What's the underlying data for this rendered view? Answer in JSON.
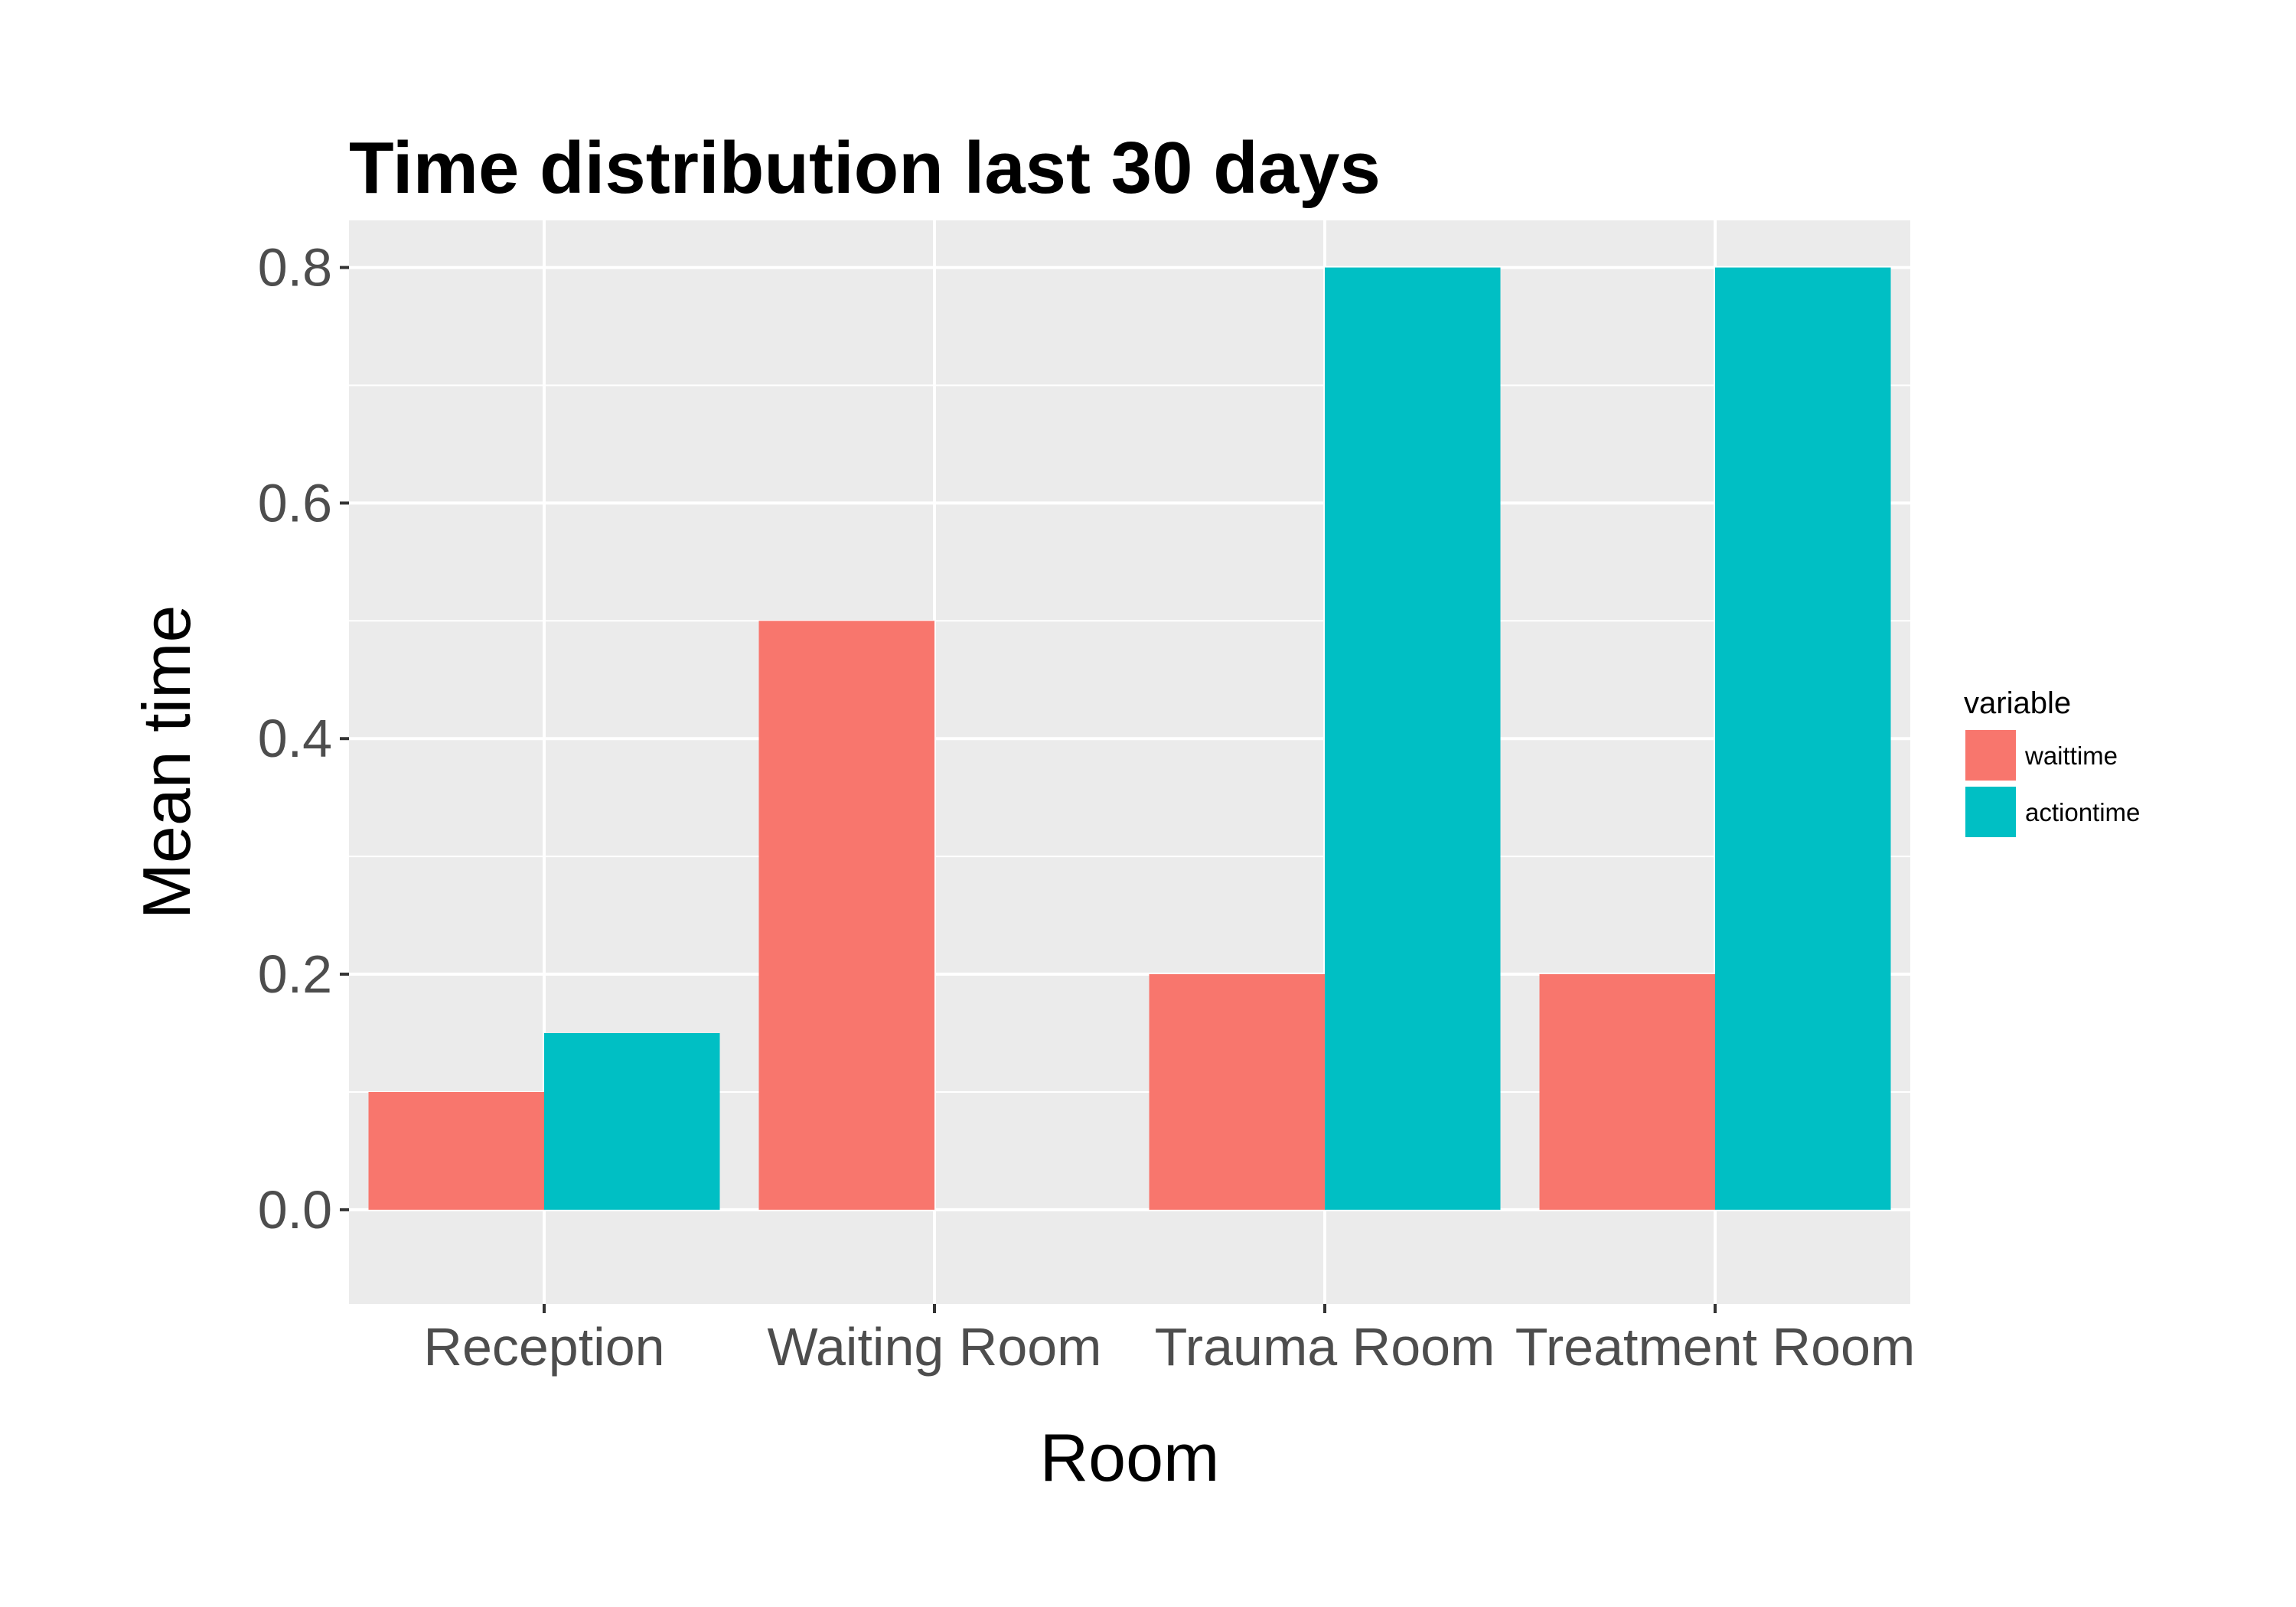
{
  "chart_data": {
    "type": "bar",
    "title": "Time distribution last 30 days",
    "xlabel": "Room",
    "ylabel": "Mean time",
    "categories": [
      "Reception",
      "Waiting Room",
      "Trauma Room",
      "Treatment Room"
    ],
    "series": [
      {
        "name": "waittime",
        "color": "#F8766D",
        "values": [
          0.1,
          0.5,
          0.2,
          0.2
        ]
      },
      {
        "name": "actiontime",
        "color": "#00BFC4",
        "values": [
          0.15,
          null,
          0.8,
          0.8
        ]
      }
    ],
    "ylim": [
      -0.08,
      0.84
    ],
    "yticks": [
      0.0,
      0.2,
      0.4,
      0.6,
      0.8
    ],
    "ytick_labels": [
      "0.0",
      "0.2",
      "0.4",
      "0.6",
      "0.8"
    ],
    "grid": true,
    "panel_color": "#EBEBEB",
    "legend": {
      "title": "variable",
      "placement": "right"
    }
  }
}
